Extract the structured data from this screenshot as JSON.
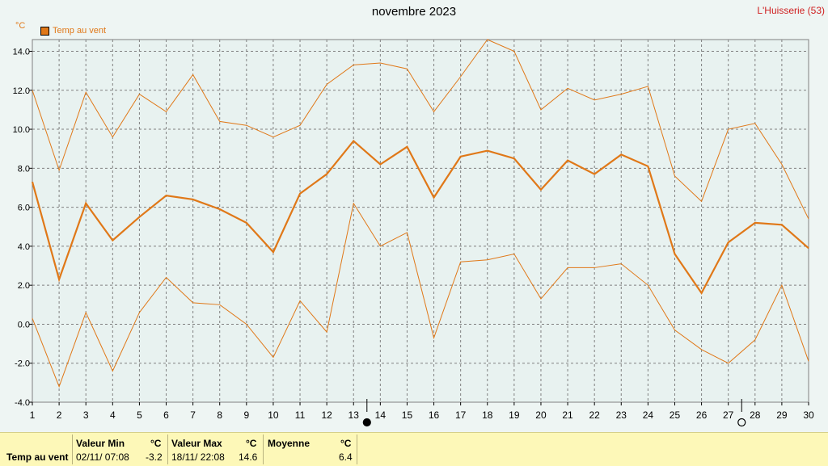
{
  "header": {
    "title": "novembre 2023",
    "station": "L'Huisserie (53)",
    "unit_label": "°C",
    "legend_label": "Temp au vent"
  },
  "colors": {
    "series": "#e07818",
    "grid": "#808080",
    "station": "#d02020",
    "stats_bg": "#fdf8b8"
  },
  "chart_data": {
    "type": "line",
    "title": "novembre 2023",
    "ylabel": "°C",
    "xlim": [
      1,
      30
    ],
    "ylim": [
      -4,
      14.6
    ],
    "x": [
      1,
      2,
      3,
      4,
      5,
      6,
      7,
      8,
      9,
      10,
      11,
      12,
      13,
      14,
      15,
      16,
      17,
      18,
      19,
      20,
      21,
      22,
      23,
      24,
      25,
      26,
      27,
      28,
      29,
      30
    ],
    "xticks": [
      1,
      2,
      3,
      4,
      5,
      6,
      7,
      8,
      9,
      10,
      11,
      12,
      13,
      14,
      15,
      16,
      17,
      18,
      19,
      20,
      21,
      22,
      23,
      24,
      25,
      26,
      27,
      28,
      29,
      30
    ],
    "yticks": [
      -4.0,
      -2.0,
      0.0,
      2.0,
      4.0,
      6.0,
      8.0,
      10.0,
      12.0,
      14.0
    ],
    "ytick_labels": [
      "-4.0",
      "-2.0",
      "0.0",
      "2.0",
      "4.0",
      "6.0",
      "8.0",
      "10.0",
      "12.0",
      "14.0"
    ],
    "grid": true,
    "legend_position": "top-left",
    "series": [
      {
        "name": "Temp au vent",
        "role": "max",
        "values": [
          12.0,
          7.9,
          11.9,
          9.6,
          11.8,
          10.9,
          12.8,
          10.4,
          10.2,
          9.6,
          10.2,
          12.3,
          13.3,
          13.4,
          13.1,
          10.9,
          12.7,
          14.6,
          14.0,
          11.0,
          12.1,
          11.5,
          11.8,
          12.2,
          7.6,
          6.3,
          10.0,
          10.3,
          8.2,
          5.4
        ]
      },
      {
        "name": "Temp au vent",
        "role": "mean",
        "values": [
          7.3,
          2.3,
          6.2,
          4.3,
          5.5,
          6.6,
          6.4,
          5.9,
          5.2,
          3.7,
          6.7,
          7.7,
          9.4,
          8.2,
          9.1,
          6.5,
          8.6,
          8.9,
          8.5,
          6.9,
          8.4,
          7.7,
          8.7,
          8.1,
          3.6,
          1.6,
          4.2,
          5.2,
          5.1,
          3.9
        ]
      },
      {
        "name": "Temp au vent",
        "role": "min",
        "values": [
          0.3,
          -3.2,
          0.6,
          -2.4,
          0.6,
          2.4,
          1.1,
          1.0,
          0.0,
          -1.7,
          1.2,
          -0.4,
          6.2,
          4.0,
          4.7,
          -0.7,
          3.2,
          3.3,
          3.6,
          1.3,
          2.9,
          2.9,
          3.1,
          2.0,
          -0.3,
          -1.3,
          -2.0,
          -0.8,
          2.0,
          -1.9
        ]
      }
    ],
    "moon_phases": [
      {
        "day": 13.5,
        "phase": "new-moon"
      },
      {
        "day": 27.5,
        "phase": "full-moon"
      }
    ]
  },
  "stats": {
    "row_label": "Temp au vent",
    "min_header": "Valeur Min",
    "min_unit": "°C",
    "min_date": "02/11/  07:08",
    "min_value": "-3.2",
    "max_header": "Valeur Max",
    "max_unit": "°C",
    "max_date": "18/11/  22:08",
    "max_value": "14.6",
    "avg_header": "Moyenne",
    "avg_unit": "°C",
    "avg_value": "6.4"
  }
}
